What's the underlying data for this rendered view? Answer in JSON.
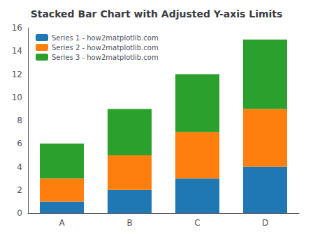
{
  "chart_data": {
    "type": "bar",
    "title": "Stacked Bar Chart with Adjusted Y-axis Limits",
    "categories": [
      "A",
      "B",
      "C",
      "D"
    ],
    "series": [
      {
        "name": "Series 1 - how2matplotlib.com",
        "color": "#1f77b4",
        "values": [
          1,
          2,
          3,
          4
        ]
      },
      {
        "name": "Series 2 - how2matplotlib.com",
        "color": "#ff7f0e",
        "values": [
          2,
          3,
          4,
          5
        ]
      },
      {
        "name": "Series 3 - how2matplotlib.com",
        "color": "#2ca02c",
        "values": [
          3,
          4,
          5,
          6
        ]
      }
    ],
    "stacked": true,
    "ylim": [
      0,
      16
    ],
    "yticks": [
      0,
      2,
      4,
      6,
      8,
      10,
      12,
      14,
      16
    ],
    "grid": false,
    "legend": "upper left"
  }
}
